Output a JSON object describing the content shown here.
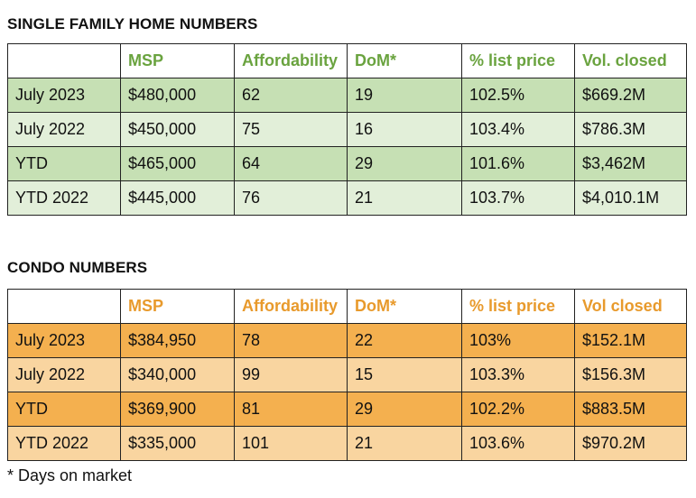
{
  "single_family": {
    "title": "SINGLE FAMILY HOME NUMBERS",
    "headers": [
      "",
      "MSP",
      "Affordability",
      "DoM*",
      "% list price",
      "Vol. closed"
    ],
    "rows": [
      [
        "July 2023",
        "$480,000",
        "62",
        "19",
        "102.5%",
        "$669.2M"
      ],
      [
        "July 2022",
        "$450,000",
        "75",
        "16",
        "103.4%",
        "$786.3M"
      ],
      [
        "YTD",
        "$465,000",
        "64",
        "29",
        "101.6%",
        "$3,462M"
      ],
      [
        "YTD 2022",
        "$445,000",
        "76",
        "21",
        "103.7%",
        "$4,010.1M"
      ]
    ]
  },
  "condo": {
    "title": "CONDO NUMBERS",
    "headers": [
      "",
      "MSP",
      "Affordability",
      "DoM*",
      "% list price",
      "Vol closed"
    ],
    "rows": [
      [
        "July 2023",
        "$384,950",
        "78",
        "22",
        "103%",
        "$152.1M"
      ],
      [
        "July 2022",
        "$340,000",
        "99",
        "15",
        "103.3%",
        "$156.3M"
      ],
      [
        "YTD",
        "$369,900",
        "81",
        "29",
        "102.2%",
        "$883.5M"
      ],
      [
        "YTD 2022",
        "$335,000",
        "101",
        "21",
        "103.6%",
        "$970.2M"
      ]
    ]
  },
  "footnote": "* Days on market",
  "colors": {
    "green_header_text": "#6aa33f",
    "green_row_dark": "#c6e0b4",
    "green_row_light": "#e2efd9",
    "orange_header_text": "#e89a2c",
    "orange_row_dark": "#f4b04f",
    "orange_row_light": "#f9d5a0"
  }
}
